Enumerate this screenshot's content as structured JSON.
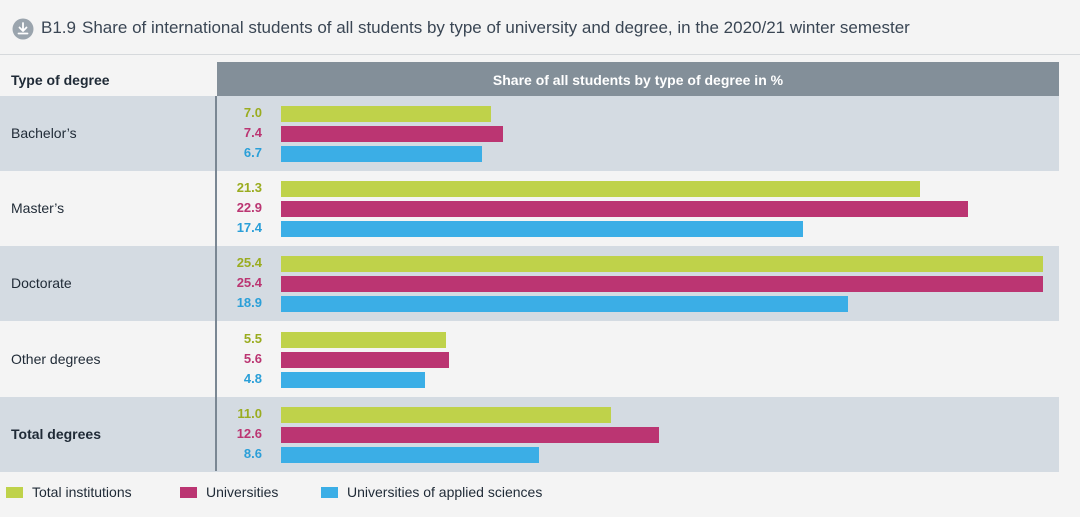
{
  "header": {
    "code": "B1.9",
    "title": "Share of international students of all students by type of university and degree, in the 2020/21 winter semester",
    "download_icon": "download-icon"
  },
  "chart_data": {
    "type": "bar",
    "orientation": "horizontal",
    "row_header": "Type of degree",
    "column_header": "Share of all students by type of degree in %",
    "categories": [
      "Bachelor’s",
      "Master’s",
      "Doctorate",
      "Other degrees",
      "Total degrees"
    ],
    "series": [
      {
        "name": "Total institutions",
        "color": "#bfd24a",
        "values": [
          7.0,
          21.3,
          25.4,
          5.5,
          11.0
        ]
      },
      {
        "name": "Universities",
        "color": "#bb3572",
        "values": [
          7.4,
          22.9,
          25.4,
          5.6,
          12.6
        ]
      },
      {
        "name": "Universities of applied sciences",
        "color": "#3baee6",
        "values": [
          6.7,
          17.4,
          18.9,
          4.8,
          8.6
        ]
      }
    ],
    "value_text_colors": [
      "#9aac1f",
      "#bb3572",
      "#2a9fd8"
    ],
    "xlim": [
      0,
      25.4
    ],
    "legend_position": "bottom-left"
  }
}
